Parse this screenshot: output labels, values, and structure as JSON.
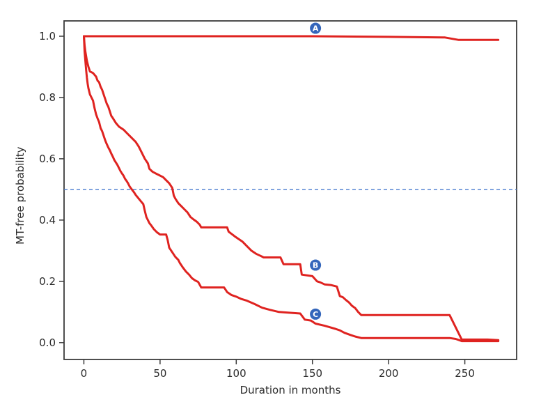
{
  "chart_data": {
    "type": "line",
    "subtype": "kaplan-meier-step",
    "title": "",
    "xlabel": "Duration in months",
    "ylabel": "MT-free probability",
    "xlim": [
      -13,
      284
    ],
    "ylim": [
      -0.055,
      1.05
    ],
    "x_ticks": [
      "0",
      "50",
      "100",
      "150",
      "200",
      "250"
    ],
    "y_ticks": [
      "0.0",
      "0.2",
      "0.4",
      "0.6",
      "0.8",
      "1.0"
    ],
    "grid": false,
    "legend": "inline-circled-letters",
    "background_color": "#ffffff",
    "axis_color": "#3a3a3a",
    "text_color": "#2b2b2b",
    "curve_color": "#df2320",
    "annotation_circle_color": "#3466bb",
    "annotation_text_color": "#ffffff",
    "reference_line": {
      "y": 0.5,
      "color": "#4779cf",
      "style": "dashed"
    },
    "series": [
      {
        "name": "A",
        "color": "#df2320",
        "label_pos": [
          152,
          1.026
        ],
        "points": [
          [
            0,
            1.0
          ],
          [
            150,
            1.0
          ],
          [
            200,
            0.998
          ],
          [
            237,
            0.996
          ],
          [
            246,
            0.988
          ],
          [
            272,
            0.988
          ]
        ]
      },
      {
        "name": "B",
        "color": "#df2320",
        "label_pos": [
          152,
          0.253
        ],
        "points": [
          [
            0,
            1.0
          ],
          [
            0.5,
            0.97
          ],
          [
            1,
            0.95
          ],
          [
            2,
            0.92
          ],
          [
            3,
            0.9
          ],
          [
            4,
            0.885
          ],
          [
            6,
            0.88
          ],
          [
            8,
            0.868
          ],
          [
            9,
            0.855
          ],
          [
            10,
            0.85
          ],
          [
            11,
            0.835
          ],
          [
            12,
            0.825
          ],
          [
            13,
            0.81
          ],
          [
            14,
            0.795
          ],
          [
            15,
            0.78
          ],
          [
            16,
            0.77
          ],
          [
            17,
            0.755
          ],
          [
            18,
            0.74
          ],
          [
            19,
            0.733
          ],
          [
            20,
            0.725
          ],
          [
            21,
            0.717
          ],
          [
            23,
            0.705
          ],
          [
            26,
            0.695
          ],
          [
            28,
            0.685
          ],
          [
            31,
            0.67
          ],
          [
            34,
            0.655
          ],
          [
            36,
            0.64
          ],
          [
            38,
            0.62
          ],
          [
            40,
            0.6
          ],
          [
            42,
            0.585
          ],
          [
            43,
            0.567
          ],
          [
            45,
            0.558
          ],
          [
            48,
            0.55
          ],
          [
            52,
            0.54
          ],
          [
            54,
            0.53
          ],
          [
            56,
            0.52
          ],
          [
            58,
            0.505
          ],
          [
            59,
            0.48
          ],
          [
            60,
            0.47
          ],
          [
            62,
            0.455
          ],
          [
            64,
            0.445
          ],
          [
            66,
            0.435
          ],
          [
            68,
            0.425
          ],
          [
            70,
            0.41
          ],
          [
            72,
            0.402
          ],
          [
            74,
            0.395
          ],
          [
            76,
            0.385
          ],
          [
            77,
            0.376
          ],
          [
            94,
            0.376
          ],
          [
            95,
            0.362
          ],
          [
            99,
            0.347
          ],
          [
            104,
            0.33
          ],
          [
            107,
            0.315
          ],
          [
            110,
            0.3
          ],
          [
            113,
            0.29
          ],
          [
            116,
            0.283
          ],
          [
            118,
            0.278
          ],
          [
            129,
            0.278
          ],
          [
            131,
            0.256
          ],
          [
            142,
            0.256
          ],
          [
            143,
            0.222
          ],
          [
            150,
            0.217
          ],
          [
            153,
            0.2
          ],
          [
            155,
            0.197
          ],
          [
            158,
            0.19
          ],
          [
            162,
            0.188
          ],
          [
            166,
            0.183
          ],
          [
            168,
            0.152
          ],
          [
            170,
            0.148
          ],
          [
            172,
            0.139
          ],
          [
            174,
            0.131
          ],
          [
            176,
            0.12
          ],
          [
            178,
            0.113
          ],
          [
            180,
            0.1
          ],
          [
            182,
            0.09
          ],
          [
            240,
            0.09
          ],
          [
            248,
            0.01
          ],
          [
            265,
            0.01
          ],
          [
            272,
            0.008
          ]
        ]
      },
      {
        "name": "C",
        "color": "#df2320",
        "label_pos": [
          152,
          0.093
        ],
        "points": [
          [
            0,
            1.0
          ],
          [
            0.5,
            0.95
          ],
          [
            1,
            0.92
          ],
          [
            1.5,
            0.89
          ],
          [
            2,
            0.865
          ],
          [
            2.5,
            0.845
          ],
          [
            3,
            0.83
          ],
          [
            4,
            0.81
          ],
          [
            5,
            0.8
          ],
          [
            6,
            0.79
          ],
          [
            7,
            0.765
          ],
          [
            8,
            0.745
          ],
          [
            9,
            0.732
          ],
          [
            10,
            0.72
          ],
          [
            11,
            0.7
          ],
          [
            12,
            0.69
          ],
          [
            13,
            0.675
          ],
          [
            14,
            0.66
          ],
          [
            15,
            0.648
          ],
          [
            16,
            0.637
          ],
          [
            17,
            0.628
          ],
          [
            18,
            0.617
          ],
          [
            19,
            0.607
          ],
          [
            20,
            0.596
          ],
          [
            21,
            0.588
          ],
          [
            22,
            0.58
          ],
          [
            23,
            0.57
          ],
          [
            24,
            0.56
          ],
          [
            25,
            0.552
          ],
          [
            26,
            0.545
          ],
          [
            27,
            0.535
          ],
          [
            28,
            0.528
          ],
          [
            29,
            0.52
          ],
          [
            30,
            0.51
          ],
          [
            31,
            0.503
          ],
          [
            33,
            0.49
          ],
          [
            34,
            0.482
          ],
          [
            36,
            0.47
          ],
          [
            38,
            0.458
          ],
          [
            39,
            0.452
          ],
          [
            40,
            0.43
          ],
          [
            41,
            0.41
          ],
          [
            43,
            0.39
          ],
          [
            44,
            0.384
          ],
          [
            46,
            0.37
          ],
          [
            48,
            0.36
          ],
          [
            50,
            0.353
          ],
          [
            54,
            0.353
          ],
          [
            55,
            0.335
          ],
          [
            56,
            0.31
          ],
          [
            58,
            0.295
          ],
          [
            60,
            0.28
          ],
          [
            62,
            0.27
          ],
          [
            63,
            0.26
          ],
          [
            65,
            0.245
          ],
          [
            67,
            0.232
          ],
          [
            69,
            0.222
          ],
          [
            71,
            0.21
          ],
          [
            73,
            0.203
          ],
          [
            75,
            0.198
          ],
          [
            77,
            0.18
          ],
          [
            92,
            0.18
          ],
          [
            94,
            0.165
          ],
          [
            97,
            0.155
          ],
          [
            100,
            0.15
          ],
          [
            103,
            0.143
          ],
          [
            107,
            0.137
          ],
          [
            112,
            0.126
          ],
          [
            117,
            0.114
          ],
          [
            122,
            0.107
          ],
          [
            128,
            0.1
          ],
          [
            134,
            0.098
          ],
          [
            142,
            0.095
          ],
          [
            145,
            0.075
          ],
          [
            149,
            0.072
          ],
          [
            152,
            0.062
          ],
          [
            158,
            0.055
          ],
          [
            161,
            0.051
          ],
          [
            165,
            0.045
          ],
          [
            168,
            0.04
          ],
          [
            171,
            0.032
          ],
          [
            175,
            0.025
          ],
          [
            178,
            0.02
          ],
          [
            182,
            0.015
          ],
          [
            240,
            0.015
          ],
          [
            244,
            0.012
          ],
          [
            248,
            0.005
          ],
          [
            272,
            0.005
          ]
        ]
      }
    ]
  }
}
